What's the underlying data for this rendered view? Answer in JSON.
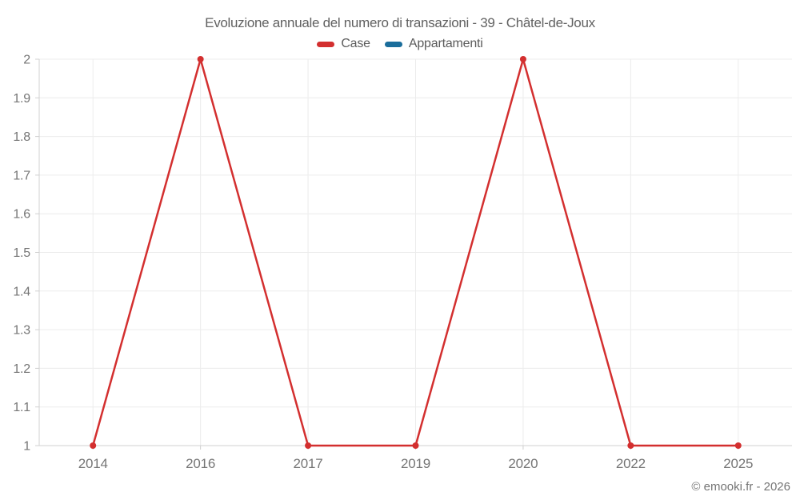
{
  "title": "Evoluzione annuale del numero di transazioni - 39 - Châtel-de-Joux",
  "legend": {
    "items": [
      {
        "label": "Case",
        "color": "#d32f2f"
      },
      {
        "label": "Appartamenti",
        "color": "#1a6d9b"
      }
    ]
  },
  "footer": {
    "credit": "© emooki.fr - 2026"
  },
  "colors": {
    "accent_red": "#d32f2f",
    "accent_blue": "#1a6d9b",
    "grid": "#ececec",
    "axis": "#d0d0d0",
    "tick_text": "#757575",
    "title_text": "#616161",
    "legend_text": "#5b5b5b",
    "footer_text": "#757575",
    "background": "#ffffff"
  },
  "chart_data": {
    "type": "line",
    "title": "Evoluzione annuale del numero di transazioni - 39 - Châtel-de-Joux",
    "categories": [
      "2014",
      "2016",
      "2017",
      "2019",
      "2020",
      "2022",
      "2025"
    ],
    "series": [
      {
        "name": "Case",
        "color": "#d32f2f",
        "values": [
          1,
          2,
          1,
          1,
          2,
          1,
          1
        ]
      },
      {
        "name": "Appartamenti",
        "color": "#1a6d9b",
        "values": [
          null,
          null,
          null,
          null,
          null,
          null,
          null
        ]
      }
    ],
    "xlabel": "",
    "ylabel": "",
    "ylim": [
      1,
      2
    ],
    "y_ticks": [
      {
        "value": 1,
        "label": "1"
      },
      {
        "value": 1.1,
        "label": "1.1"
      },
      {
        "value": 1.2,
        "label": "1.2"
      },
      {
        "value": 1.3,
        "label": "1.3"
      },
      {
        "value": 1.4,
        "label": "1.4"
      },
      {
        "value": 1.5,
        "label": "1.5"
      },
      {
        "value": 1.6,
        "label": "1.6"
      },
      {
        "value": 1.7,
        "label": "1.7"
      },
      {
        "value": 1.8,
        "label": "1.8"
      },
      {
        "value": 1.9,
        "label": "1.9"
      },
      {
        "value": 2,
        "label": "2"
      }
    ],
    "grid": true,
    "legend_position": "top"
  }
}
